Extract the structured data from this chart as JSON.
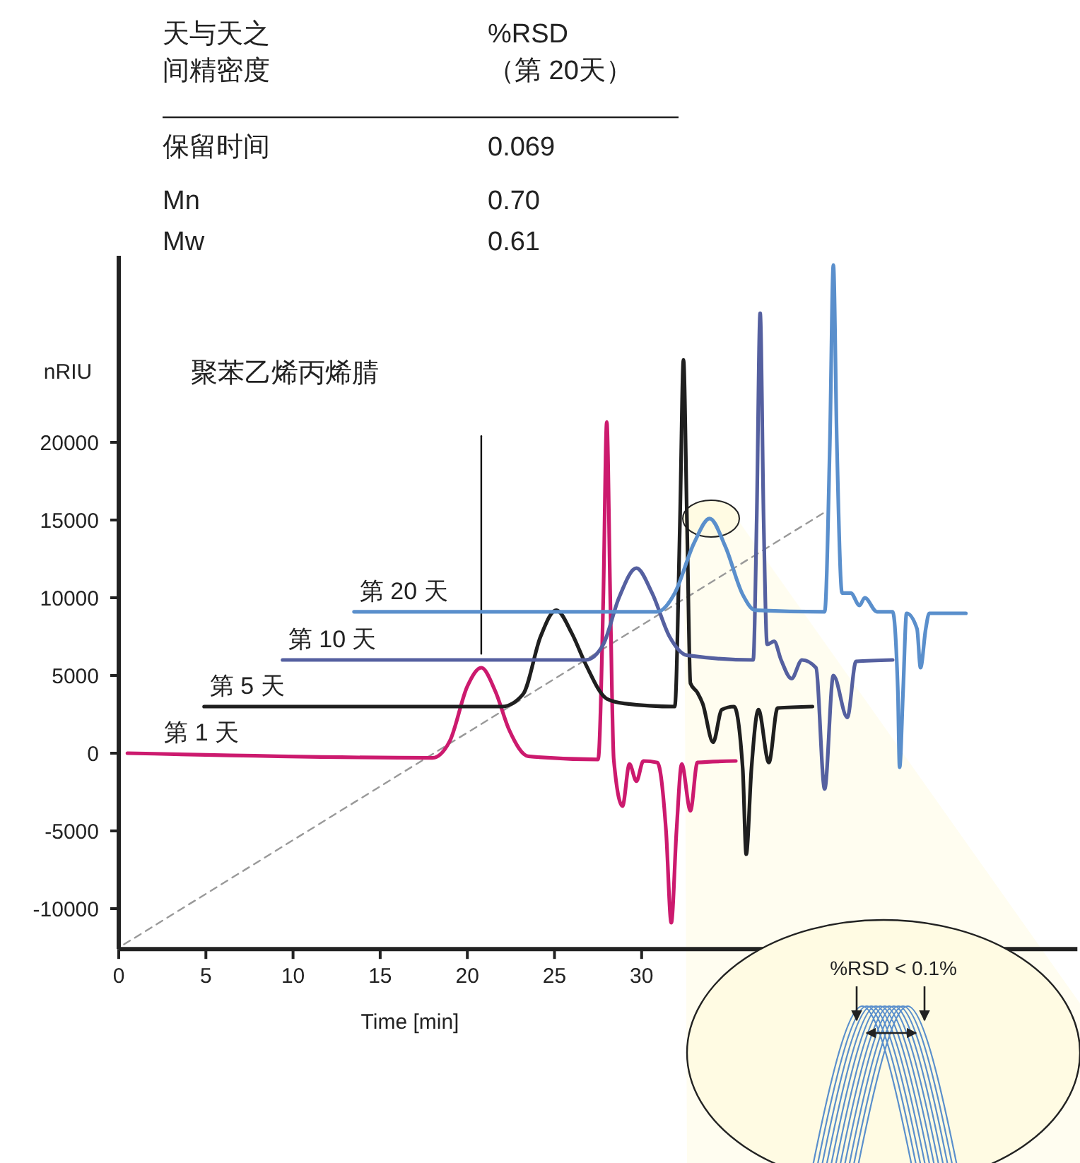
{
  "chart_data": {
    "type": "line",
    "title": "聚苯乙烯丙烯腈",
    "xlabel": "Time [min]",
    "ylabel": "nRIU",
    "annotations": [
      "天与天之",
      "%RSD",
      "间精密度",
      "（第 20天）",
      "保留时间",
      "0.069",
      "Mn",
      "0.70",
      "Mw",
      "0.61",
      "%RSD < 0.1%"
    ],
    "xlim": [
      0,
      55
    ],
    "ylim": [
      -12600,
      32000
    ],
    "xticks": [
      0,
      5,
      10,
      15,
      20,
      25,
      30
    ],
    "yticks": [
      -10000,
      -5000,
      0,
      5000,
      10000,
      15000,
      20000
    ],
    "grid": false,
    "marker": "none",
    "line_style": "solid",
    "series": [
      {
        "color": "#999999",
        "line_style": "dashed",
        "x": [
          0.3,
          40.5
        ],
        "values": [
          -12300,
          15500
        ]
      },
      {
        "color": "#000000",
        "x": [
          20.8,
          20.8
        ],
        "values": [
          6400,
          20400
        ]
      },
      {
        "name": "第 1 天",
        "color": "#cc1a6e",
        "x": [
          0.5,
          18,
          19,
          20,
          20.8,
          21.6,
          22.4,
          23.5,
          27.5,
          27.8,
          28.0,
          28.2,
          28.4,
          28.9,
          29.3,
          29.7,
          30.1,
          30.9,
          31.4,
          31.7,
          32.0,
          32.3,
          32.8,
          33.2,
          35.4
        ],
        "values": [
          0,
          -300,
          800,
          4300,
          5500,
          4000,
          1500,
          -200,
          -400,
          10000,
          21300,
          10000,
          -400,
          -3400,
          -700,
          -1800,
          -500,
          -600,
          -5000,
          -10900,
          -5000,
          -700,
          -3700,
          -600,
          -500
        ]
      },
      {
        "name": "第 5 天",
        "color": "#1f1f1f",
        "x": [
          4.9,
          22.0,
          23.2,
          24.2,
          25.1,
          26.0,
          26.8,
          28.0,
          29.0,
          31.9,
          32.2,
          32.4,
          32.6,
          32.8,
          33.2,
          33.5,
          34.1,
          34.6,
          35.3,
          35.8,
          36.0,
          36.3,
          36.7,
          37.3,
          37.8,
          39.8
        ],
        "values": [
          3000,
          3000,
          3800,
          7500,
          9200,
          7700,
          5700,
          3500,
          3200,
          3000,
          15000,
          25300,
          15000,
          4500,
          3900,
          3200,
          700,
          2800,
          3000,
          -1000,
          -6500,
          -1000,
          2800,
          -600,
          2900,
          3000
        ]
      },
      {
        "name": "第 10 天",
        "color": "#5560a0",
        "x": [
          9.4,
          26.8,
          27.8,
          28.7,
          29.7,
          30.6,
          31.6,
          32.6,
          36.4,
          36.6,
          36.8,
          37.0,
          37.2,
          37.6,
          38.0,
          38.6,
          39.2,
          40.0,
          40.5,
          41.0,
          41.8,
          42.3,
          44.4
        ],
        "values": [
          6000,
          6000,
          7000,
          10000,
          11900,
          10300,
          7500,
          6300,
          6000,
          15000,
          28300,
          15000,
          7000,
          7200,
          6000,
          4800,
          6000,
          5500,
          -2300,
          5000,
          2300,
          5900,
          6000
        ]
      },
      {
        "name": "第 20 天",
        "color": "#5a8fcc",
        "x": [
          13.5,
          30.9,
          31.9,
          33.0,
          33.9,
          34.8,
          35.8,
          36.5,
          40.5,
          40.8,
          41.0,
          41.2,
          41.5,
          42.0,
          42.5,
          42.8,
          43.5,
          44.4,
          44.7,
          44.8,
          45.0,
          45.2,
          45.8,
          46.0,
          46.3,
          46.5,
          48.6
        ],
        "values": [
          9100,
          9100,
          10300,
          13500,
          15100,
          13300,
          10200,
          9200,
          9100,
          20000,
          31400,
          20000,
          10300,
          10300,
          9500,
          10000,
          9100,
          9100,
          4000,
          -900,
          4000,
          9000,
          8000,
          5500,
          8000,
          9000,
          9000
        ]
      }
    ]
  }
}
